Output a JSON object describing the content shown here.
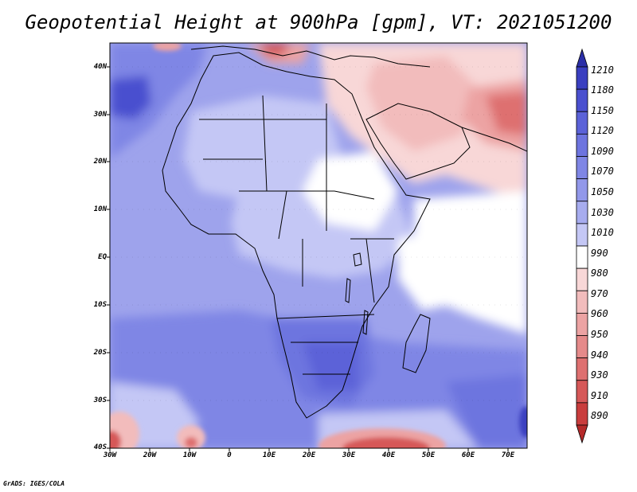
{
  "title": "Geopotential Height at 900hPa [gpm], VT: 2021051200",
  "credit": "GrADS: IGES/COLA",
  "map": {
    "variable": "Geopotential Height",
    "level": "900hPa",
    "units": "gpm",
    "valid_time": "2021051200",
    "lon_range": [
      -30,
      75
    ],
    "lat_range": [
      -40,
      45
    ],
    "lat_labels": [
      "40N",
      "30N",
      "20N",
      "10N",
      "EQ",
      "10S",
      "20S",
      "30S",
      "40S"
    ],
    "lon_labels": [
      "30W",
      "20W",
      "10W",
      "0",
      "10E",
      "20E",
      "30E",
      "40E",
      "50E",
      "60E",
      "70E"
    ]
  },
  "colorbar": {
    "levels": [
      "1210",
      "1180",
      "1150",
      "1120",
      "1090",
      "1070",
      "1050",
      "1030",
      "1010",
      "990",
      "980",
      "970",
      "960",
      "950",
      "940",
      "930",
      "910",
      "890"
    ],
    "colors": [
      "#2b2fa8",
      "#3a3fc0",
      "#4a50cf",
      "#5b62d8",
      "#6d74df",
      "#7f86e5",
      "#9298ea",
      "#a7acef",
      "#c4c7f5",
      "#ffffff",
      "#f8d7d7",
      "#f2bcbc",
      "#eca3a3",
      "#e58a8a",
      "#de7070",
      "#d65858",
      "#c93d3d",
      "#b52a2a"
    ]
  }
}
